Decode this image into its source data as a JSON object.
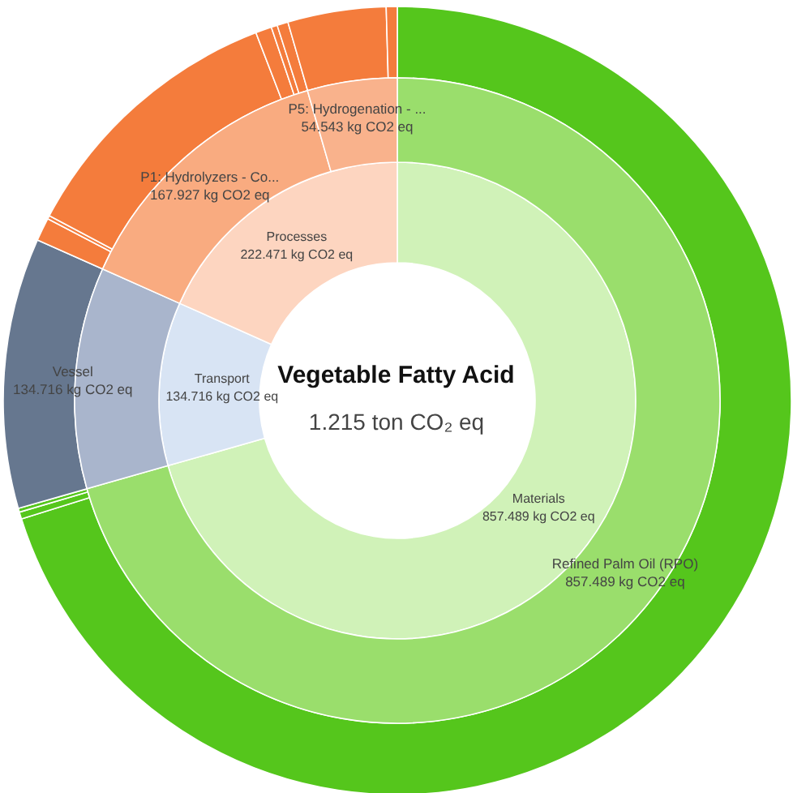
{
  "chart_data": [
    {
      "type": "donut",
      "title": "Vegetable Fatty Acid",
      "subtitle": "1.215 ton CO₂ eq",
      "categories": [
        "Materials",
        "Transport",
        "Processes"
      ],
      "values": [
        857.489,
        134.716,
        222.471
      ],
      "colors": [
        "#d0f2b8",
        "#d8e4f4",
        "#fdd5c0"
      ],
      "value_labels": [
        "857.489 kg CO2 eq",
        "134.716 kg CO2 eq",
        "222.471 kg CO2 eq"
      ]
    },
    {
      "type": "donut",
      "categories": [
        "Refined Palm Oil (RPO)",
        "Vessel",
        "P1: Hydrolyzers - Co...",
        "P5: Hydrogenation - ..."
      ],
      "values": [
        857.489,
        134.716,
        167.927,
        54.543
      ],
      "colors": [
        "#9ade6c",
        "#a9b5cc",
        "#f9ab80",
        "#f9b28c"
      ],
      "value_labels": [
        "857.489 kg CO2 eq",
        "134.716 kg CO2 eq",
        "167.927 kg CO2 eq",
        "54.543 kg CO2 eq"
      ]
    },
    {
      "type": "donut",
      "categories": [
        null,
        null,
        null,
        null,
        null,
        null,
        null,
        null,
        null,
        null,
        null,
        null
      ],
      "values": [
        70.14,
        0.29,
        0.16,
        11.09,
        0.95,
        0.14,
        11.39,
        0.66,
        0.25,
        0.45,
        4.03,
        0.45
      ],
      "colors": [
        "#55c61c",
        "#55c61c",
        "#55c61c",
        "#66778f",
        "#f47c3c",
        "#f47c3c",
        "#f47c3c",
        "#f47c3c",
        "#f47c3c",
        "#f47c3c",
        "#f47c3c",
        "#f47c3c"
      ]
    }
  ]
}
